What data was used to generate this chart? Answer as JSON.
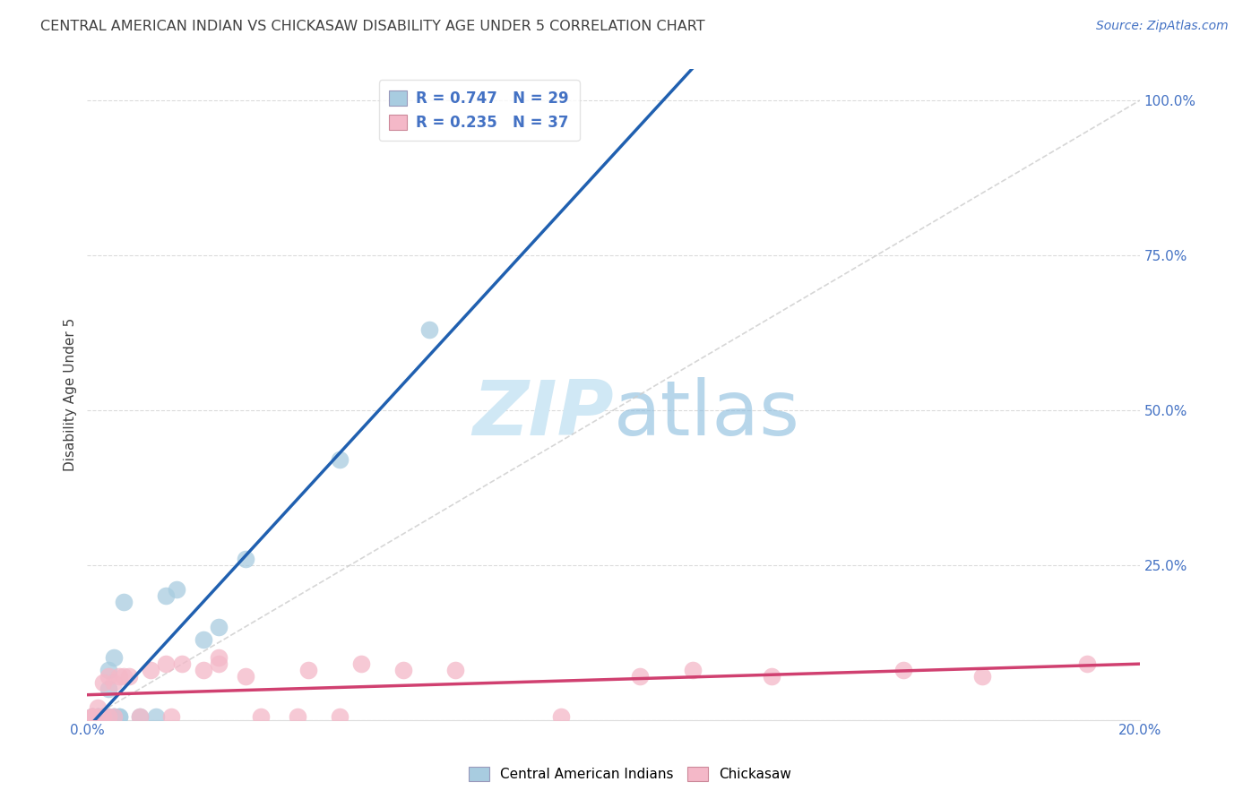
{
  "title": "CENTRAL AMERICAN INDIAN VS CHICKASAW DISABILITY AGE UNDER 5 CORRELATION CHART",
  "source": "Source: ZipAtlas.com",
  "ylabel": "Disability Age Under 5",
  "xlim": [
    0.0,
    0.2
  ],
  "ylim": [
    0.0,
    1.05
  ],
  "xtick_positions": [
    0.0,
    0.05,
    0.1,
    0.15,
    0.2
  ],
  "xtick_labels": [
    "0.0%",
    "",
    "",
    "",
    "20.0%"
  ],
  "ytick_positions": [
    0.0,
    0.25,
    0.5,
    0.75,
    1.0
  ],
  "ytick_labels": [
    "",
    "25.0%",
    "50.0%",
    "75.0%",
    "100.0%"
  ],
  "r_blue": 0.747,
  "n_blue": 29,
  "r_pink": 0.235,
  "n_pink": 37,
  "legend_label_blue": "Central American Indians",
  "legend_label_pink": "Chickasaw",
  "blue_scatter_color": "#a8cce0",
  "pink_scatter_color": "#f4b8c8",
  "blue_line_color": "#2060b0",
  "pink_line_color": "#d04070",
  "diagonal_color": "#cccccc",
  "text_color": "#4472c4",
  "title_color": "#404040",
  "background_color": "#ffffff",
  "grid_color": "#cccccc",
  "watermark_color": "#d0e8f5",
  "blue_x": [
    0.001,
    0.001,
    0.001,
    0.002,
    0.002,
    0.002,
    0.002,
    0.003,
    0.003,
    0.003,
    0.003,
    0.004,
    0.004,
    0.004,
    0.005,
    0.005,
    0.005,
    0.006,
    0.006,
    0.007,
    0.01,
    0.013,
    0.015,
    0.017,
    0.022,
    0.025,
    0.03,
    0.048,
    0.065
  ],
  "blue_y": [
    0.005,
    0.005,
    0.005,
    0.005,
    0.005,
    0.005,
    0.005,
    0.005,
    0.005,
    0.005,
    0.005,
    0.005,
    0.05,
    0.08,
    0.005,
    0.005,
    0.1,
    0.005,
    0.005,
    0.19,
    0.005,
    0.005,
    0.2,
    0.21,
    0.13,
    0.15,
    0.26,
    0.42,
    0.63
  ],
  "pink_x": [
    0.001,
    0.001,
    0.001,
    0.002,
    0.002,
    0.003,
    0.003,
    0.004,
    0.004,
    0.005,
    0.005,
    0.006,
    0.007,
    0.008,
    0.01,
    0.012,
    0.015,
    0.016,
    0.018,
    0.022,
    0.025,
    0.025,
    0.03,
    0.033,
    0.04,
    0.042,
    0.048,
    0.052,
    0.06,
    0.07,
    0.09,
    0.105,
    0.115,
    0.13,
    0.155,
    0.17,
    0.19
  ],
  "pink_y": [
    0.005,
    0.005,
    0.005,
    0.005,
    0.02,
    0.005,
    0.06,
    0.07,
    0.005,
    0.005,
    0.06,
    0.07,
    0.07,
    0.07,
    0.005,
    0.08,
    0.09,
    0.005,
    0.09,
    0.08,
    0.09,
    0.1,
    0.07,
    0.005,
    0.005,
    0.08,
    0.005,
    0.09,
    0.08,
    0.08,
    0.005,
    0.07,
    0.08,
    0.07,
    0.08,
    0.07,
    0.09
  ]
}
